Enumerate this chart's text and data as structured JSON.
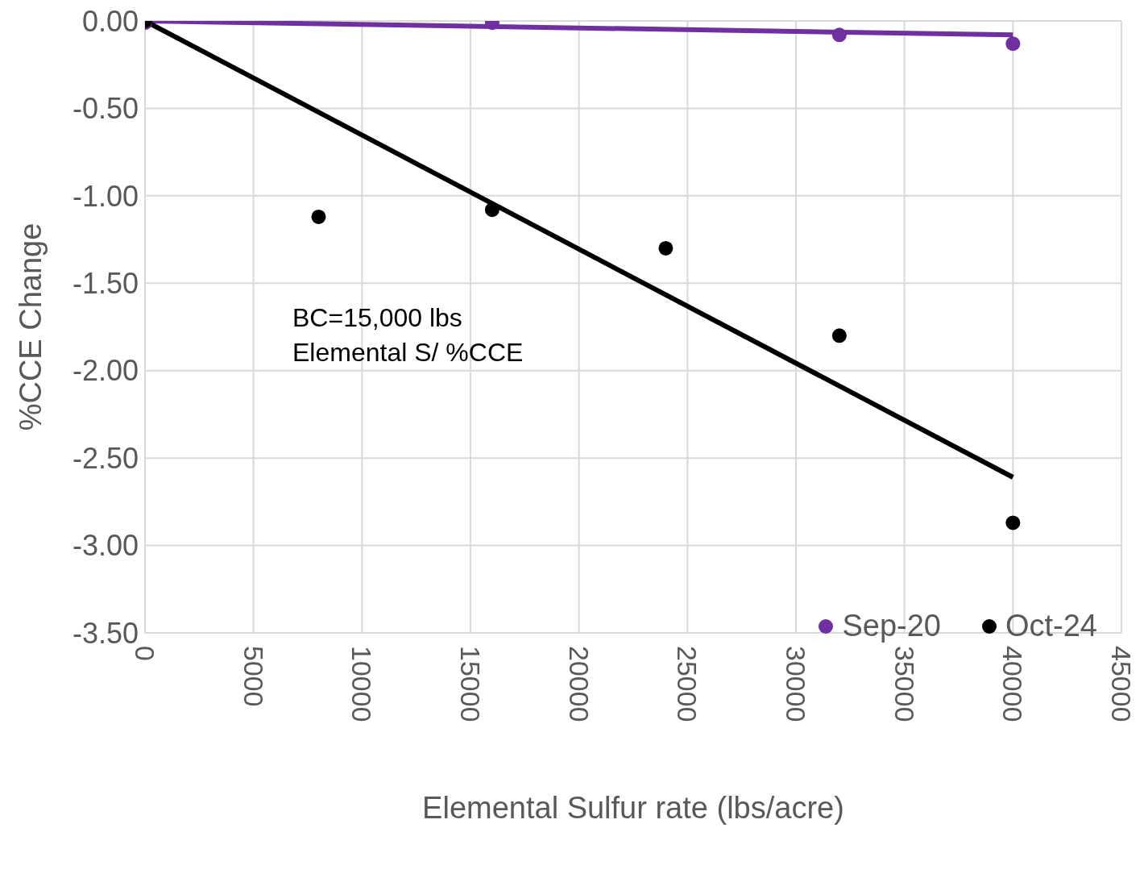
{
  "chart_data": {
    "type": "scatter",
    "xlabel": "Elemental Sulfur rate (lbs/acre)",
    "ylabel": "%CCE Change",
    "annotations": [
      "BC=15,000 lbs\nElemental S/ %CCE"
    ],
    "xlim": [
      0,
      45000
    ],
    "xticks": [
      0,
      5000,
      10000,
      15000,
      20000,
      25000,
      30000,
      35000,
      40000,
      45000
    ],
    "ylim": [
      -3.5,
      0
    ],
    "yticks": [
      {
        "value": -3.5,
        "label": "-3.50"
      },
      {
        "value": -3,
        "label": "-3.00"
      },
      {
        "value": -2.5,
        "label": "-2.50"
      },
      {
        "value": -2,
        "label": "-2.00"
      },
      {
        "value": -1.5,
        "label": "-1.50"
      },
      {
        "value": -1,
        "label": "-1.00"
      },
      {
        "value": -0.5,
        "label": "-0.50"
      },
      {
        "value": 0,
        "label": "0.00"
      }
    ],
    "grid": true,
    "legend": "bottom right",
    "series": [
      {
        "name": "Sep-20",
        "color": "#7030a0",
        "x": [
          0,
          16000,
          32000,
          40000
        ],
        "values": [
          -0.01,
          -0.01,
          -0.08,
          -0.13
        ],
        "marker": "circle"
      },
      {
        "name": "Oct-24",
        "color": "#000000",
        "x": [
          0,
          8000,
          16000,
          24000,
          32000,
          40000
        ],
        "values": [
          0,
          -1.12,
          -1.08,
          -1.3,
          -1.8,
          -2.87
        ],
        "marker": "circle"
      },
      {
        "type": "line",
        "color": "#7030a0",
        "x": [
          0,
          40000
        ],
        "values": [
          0,
          -0.08
        ],
        "marker": "none"
      },
      {
        "type": "line",
        "color": "#000000",
        "x": [
          0,
          40000
        ],
        "values": [
          0,
          -2.61
        ],
        "marker": "none"
      }
    ]
  }
}
